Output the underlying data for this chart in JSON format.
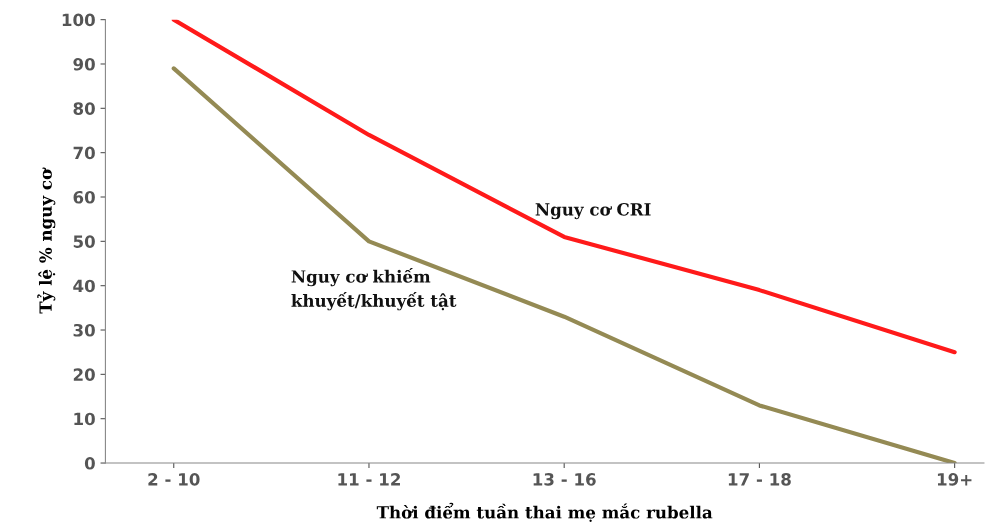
{
  "chart_data": {
    "type": "line",
    "xlabel": "Thời điểm tuần thai mẹ mắc rubella",
    "ylabel": "Tỷ lệ % nguy cơ",
    "categories": [
      "2 - 10",
      "11 - 12",
      "13 - 16",
      "17 - 18",
      "19+"
    ],
    "series": [
      {
        "name": "Nguy cơ CRI",
        "color": "#ff1a1a",
        "values": [
          100,
          74,
          51,
          39,
          25
        ]
      },
      {
        "name": "Nguy cơ khiếm\nkhuyết/khuyết tật",
        "color": "#948a54",
        "values": [
          89,
          50,
          33,
          13,
          0
        ]
      }
    ],
    "ylim": [
      0,
      100
    ],
    "yticks": [
      0,
      10,
      20,
      30,
      40,
      50,
      60,
      70,
      80,
      90,
      100
    ],
    "grid": false,
    "legend": false,
    "marker": "none",
    "line_style": "solid"
  }
}
